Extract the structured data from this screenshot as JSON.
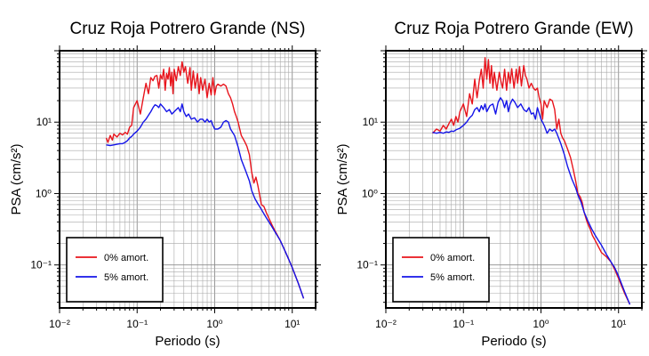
{
  "chart_data": [
    {
      "type": "line",
      "title": "Cruz Roja Potrero Grande (NS)",
      "xlabel": "Periodo (s)",
      "ylabel": "PSA (cm/s²)",
      "xscale": "log",
      "yscale": "log",
      "xlim": [
        0.01,
        20
      ],
      "ylim": [
        0.025,
        100
      ],
      "grid": true,
      "legend_position": "bottom-left",
      "xticks": [
        {
          "value": 0.01,
          "label": "10⁻²"
        },
        {
          "value": 0.1,
          "label": "10⁻¹"
        },
        {
          "value": 1,
          "label": "10⁰"
        },
        {
          "value": 10,
          "label": "10¹"
        }
      ],
      "yticks": [
        {
          "value": 0.1,
          "label": "10⁻¹"
        },
        {
          "value": 1,
          "label": "10⁰"
        },
        {
          "value": 10,
          "label": "10¹"
        }
      ],
      "series": [
        {
          "name": "0% amort.",
          "color": "#e8141c",
          "x": [
            0.04,
            0.042,
            0.045,
            0.048,
            0.05,
            0.055,
            0.06,
            0.065,
            0.07,
            0.075,
            0.08,
            0.085,
            0.09,
            0.1,
            0.11,
            0.12,
            0.13,
            0.14,
            0.15,
            0.16,
            0.17,
            0.18,
            0.19,
            0.2,
            0.21,
            0.22,
            0.23,
            0.24,
            0.25,
            0.26,
            0.27,
            0.28,
            0.29,
            0.3,
            0.32,
            0.34,
            0.36,
            0.38,
            0.4,
            0.42,
            0.45,
            0.48,
            0.5,
            0.53,
            0.56,
            0.6,
            0.63,
            0.66,
            0.7,
            0.75,
            0.8,
            0.85,
            0.9,
            0.95,
            1.0,
            1.05,
            1.1,
            1.2,
            1.3,
            1.4,
            1.5,
            1.6,
            1.7,
            1.8,
            1.9,
            2.0,
            2.2,
            2.4,
            2.6,
            2.8,
            3.0,
            3.2,
            3.4,
            3.6,
            3.8,
            4.0,
            4.3,
            4.6,
            5.0,
            5.5,
            6.0,
            7.0,
            8.0,
            9.0,
            10.0,
            12.0,
            14.0
          ],
          "y": [
            6.0,
            5.2,
            6.5,
            5.6,
            6.8,
            6.2,
            7.0,
            6.6,
            7.2,
            6.8,
            8.5,
            9.0,
            16.0,
            20.0,
            13.0,
            22.0,
            35.0,
            25.0,
            42.0,
            38.0,
            44.0,
            45.0,
            30.0,
            46.0,
            40.0,
            55.0,
            28.0,
            48.0,
            40.0,
            58.0,
            32.0,
            50.0,
            25.0,
            55.0,
            38.0,
            60.0,
            45.0,
            70.0,
            50.0,
            60.0,
            35.0,
            58.0,
            28.0,
            52.0,
            30.0,
            48.0,
            25.0,
            42.0,
            28.0,
            40.0,
            22.0,
            35.0,
            24.0,
            42.0,
            24.0,
            32.0,
            34.0,
            32.0,
            34.0,
            32.0,
            25.0,
            22.0,
            18.0,
            14.0,
            12.0,
            10.0,
            6.5,
            5.5,
            4.6,
            3.5,
            2.0,
            1.4,
            1.7,
            1.3,
            0.95,
            0.7,
            0.66,
            0.55,
            0.45,
            0.36,
            0.3,
            0.22,
            0.16,
            0.12,
            0.092,
            0.055,
            0.034
          ]
        },
        {
          "name": "5% amort.",
          "color": "#1414e8",
          "x": [
            0.04,
            0.045,
            0.05,
            0.055,
            0.06,
            0.065,
            0.07,
            0.075,
            0.08,
            0.085,
            0.09,
            0.1,
            0.11,
            0.12,
            0.13,
            0.14,
            0.15,
            0.16,
            0.17,
            0.18,
            0.19,
            0.2,
            0.22,
            0.24,
            0.26,
            0.28,
            0.3,
            0.32,
            0.34,
            0.36,
            0.38,
            0.4,
            0.43,
            0.46,
            0.5,
            0.55,
            0.6,
            0.65,
            0.7,
            0.75,
            0.8,
            0.85,
            0.9,
            0.95,
            1.0,
            1.1,
            1.2,
            1.3,
            1.4,
            1.5,
            1.6,
            1.8,
            2.0,
            2.2,
            2.5,
            2.8,
            3.0,
            3.3,
            3.6,
            4.0,
            4.5,
            5.0,
            5.5,
            6.0,
            7.0,
            8.0,
            9.0,
            10.0,
            12.0,
            14.0
          ],
          "y": [
            4.8,
            4.7,
            4.8,
            4.9,
            5.0,
            5.0,
            5.2,
            5.5,
            6.0,
            6.3,
            6.8,
            7.5,
            8.5,
            10.0,
            11.0,
            12.5,
            14.0,
            16.0,
            17.5,
            17.0,
            16.0,
            18.0,
            16.0,
            14.0,
            15.0,
            13.0,
            14.0,
            15.0,
            16.0,
            14.0,
            18.0,
            14.0,
            12.0,
            13.0,
            11.0,
            11.5,
            10.0,
            11.0,
            11.0,
            10.0,
            11.0,
            10.0,
            10.5,
            9.0,
            8.0,
            8.0,
            8.5,
            10.0,
            10.5,
            10.0,
            8.0,
            6.5,
            4.5,
            3.0,
            2.1,
            1.5,
            1.1,
            0.85,
            0.72,
            0.6,
            0.48,
            0.4,
            0.34,
            0.29,
            0.22,
            0.16,
            0.12,
            0.092,
            0.055,
            0.034
          ]
        }
      ]
    },
    {
      "type": "line",
      "title": "Cruz Roja Potrero Grande (EW)",
      "xlabel": "Periodo (s)",
      "ylabel": "PSA (cm/s²)",
      "xscale": "log",
      "yscale": "log",
      "xlim": [
        0.01,
        20
      ],
      "ylim": [
        0.025,
        100
      ],
      "grid": true,
      "legend_position": "bottom-left",
      "xticks": [
        {
          "value": 0.01,
          "label": "10⁻²"
        },
        {
          "value": 0.1,
          "label": "10⁻¹"
        },
        {
          "value": 1,
          "label": "10⁰"
        },
        {
          "value": 10,
          "label": "10¹"
        }
      ],
      "yticks": [
        {
          "value": 0.1,
          "label": "10⁻¹"
        },
        {
          "value": 1,
          "label": "10⁰"
        },
        {
          "value": 10,
          "label": "10¹"
        }
      ],
      "series": [
        {
          "name": "0% amort.",
          "color": "#e8141c",
          "x": [
            0.04,
            0.045,
            0.05,
            0.055,
            0.06,
            0.065,
            0.07,
            0.075,
            0.08,
            0.085,
            0.09,
            0.1,
            0.11,
            0.12,
            0.13,
            0.14,
            0.15,
            0.16,
            0.17,
            0.18,
            0.19,
            0.2,
            0.21,
            0.22,
            0.23,
            0.24,
            0.25,
            0.27,
            0.29,
            0.3,
            0.32,
            0.34,
            0.36,
            0.38,
            0.4,
            0.42,
            0.45,
            0.48,
            0.5,
            0.53,
            0.56,
            0.6,
            0.63,
            0.66,
            0.7,
            0.75,
            0.8,
            0.85,
            0.9,
            0.95,
            1.0,
            1.05,
            1.1,
            1.2,
            1.3,
            1.4,
            1.5,
            1.6,
            1.7,
            1.8,
            1.9,
            2.0,
            2.2,
            2.4,
            2.6,
            2.8,
            3.0,
            3.2,
            3.4,
            3.6,
            3.8,
            4.0,
            4.3,
            4.6,
            5.0,
            5.5,
            6.0,
            7.0,
            8.0,
            9.0,
            10.0,
            12.0,
            14.0
          ],
          "y": [
            7.0,
            8.0,
            7.5,
            9.0,
            8.0,
            9.5,
            11.0,
            9.0,
            12.0,
            10.0,
            14.0,
            18.0,
            12.0,
            25.0,
            18.0,
            40.0,
            22.0,
            38.0,
            55.0,
            30.0,
            80.0,
            40.0,
            75.0,
            35.0,
            62.0,
            30.0,
            50.0,
            28.0,
            50.0,
            40.0,
            30.0,
            55.0,
            28.0,
            50.0,
            35.0,
            56.0,
            30.0,
            55.0,
            35.0,
            60.0,
            32.0,
            62.0,
            45.0,
            40.0,
            30.0,
            35.0,
            30.0,
            28.0,
            30.0,
            22.0,
            18.0,
            11.0,
            20.0,
            16.0,
            21.0,
            20.0,
            15.0,
            8.0,
            11.0,
            7.0,
            6.0,
            5.5,
            4.2,
            3.2,
            2.2,
            1.5,
            1.0,
            0.9,
            0.75,
            0.55,
            0.45,
            0.38,
            0.32,
            0.26,
            0.22,
            0.18,
            0.15,
            0.13,
            0.11,
            0.085,
            0.065,
            0.04,
            0.028
          ]
        },
        {
          "name": "5% amort.",
          "color": "#1414e8",
          "x": [
            0.04,
            0.045,
            0.05,
            0.055,
            0.06,
            0.065,
            0.07,
            0.075,
            0.08,
            0.09,
            0.1,
            0.11,
            0.12,
            0.13,
            0.14,
            0.15,
            0.16,
            0.17,
            0.18,
            0.19,
            0.2,
            0.22,
            0.24,
            0.26,
            0.28,
            0.3,
            0.32,
            0.34,
            0.36,
            0.38,
            0.4,
            0.43,
            0.46,
            0.5,
            0.55,
            0.6,
            0.65,
            0.7,
            0.75,
            0.8,
            0.85,
            0.9,
            1.0,
            1.1,
            1.2,
            1.3,
            1.4,
            1.5,
            1.6,
            1.8,
            2.0,
            2.2,
            2.5,
            2.8,
            3.0,
            3.3,
            3.6,
            4.0,
            4.5,
            5.0,
            5.5,
            6.0,
            7.0,
            8.0,
            9.0,
            10.0,
            12.0,
            14.0
          ],
          "y": [
            7.2,
            7.0,
            7.2,
            7.0,
            7.3,
            7.2,
            7.5,
            7.4,
            7.8,
            8.2,
            9.0,
            10.0,
            11.5,
            12.5,
            15.0,
            16.0,
            14.0,
            17.0,
            15.0,
            18.0,
            14.0,
            17.0,
            18.0,
            13.0,
            19.0,
            22.0,
            20.0,
            16.0,
            20.0,
            14.0,
            18.0,
            21.0,
            19.0,
            16.0,
            18.0,
            15.0,
            14.0,
            16.0,
            13.0,
            13.5,
            11.0,
            16.0,
            11.0,
            9.0,
            7.0,
            8.0,
            7.5,
            8.0,
            7.0,
            5.0,
            3.5,
            2.4,
            1.6,
            1.2,
            0.95,
            0.75,
            0.55,
            0.42,
            0.32,
            0.26,
            0.22,
            0.19,
            0.14,
            0.11,
            0.09,
            0.07,
            0.042,
            0.028
          ]
        }
      ]
    }
  ]
}
